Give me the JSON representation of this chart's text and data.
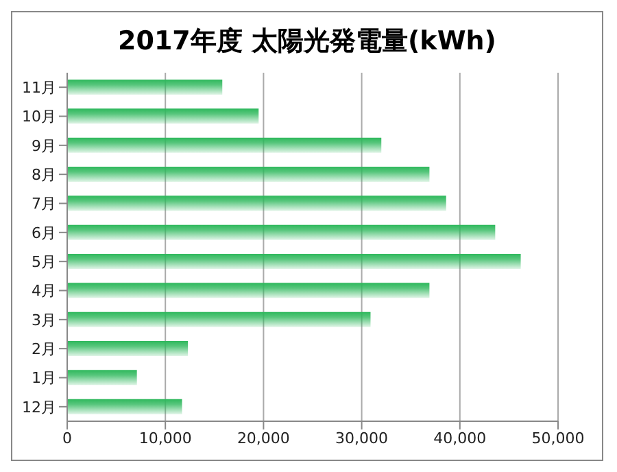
{
  "chart_data": {
    "type": "bar",
    "orientation": "horizontal",
    "title": "2017年度 太陽光発電量(kWh)",
    "categories": [
      "11月",
      "10月",
      "9月",
      "8月",
      "7月",
      "6月",
      "5月",
      "4月",
      "3月",
      "2月",
      "1月",
      "12月"
    ],
    "values": [
      15800,
      19500,
      32000,
      36900,
      38600,
      43600,
      46200,
      36900,
      30900,
      12300,
      7100,
      11700
    ],
    "color": "#2eb85c",
    "xlim": [
      0,
      50000
    ],
    "xticks": [
      {
        "value": 0,
        "label": "0"
      },
      {
        "value": 10000,
        "label": "10,000"
      },
      {
        "value": 20000,
        "label": "20,000"
      },
      {
        "value": 30000,
        "label": "30,000"
      },
      {
        "value": 40000,
        "label": "40,000"
      },
      {
        "value": 50000,
        "label": "50,000"
      }
    ],
    "grid": "x"
  }
}
